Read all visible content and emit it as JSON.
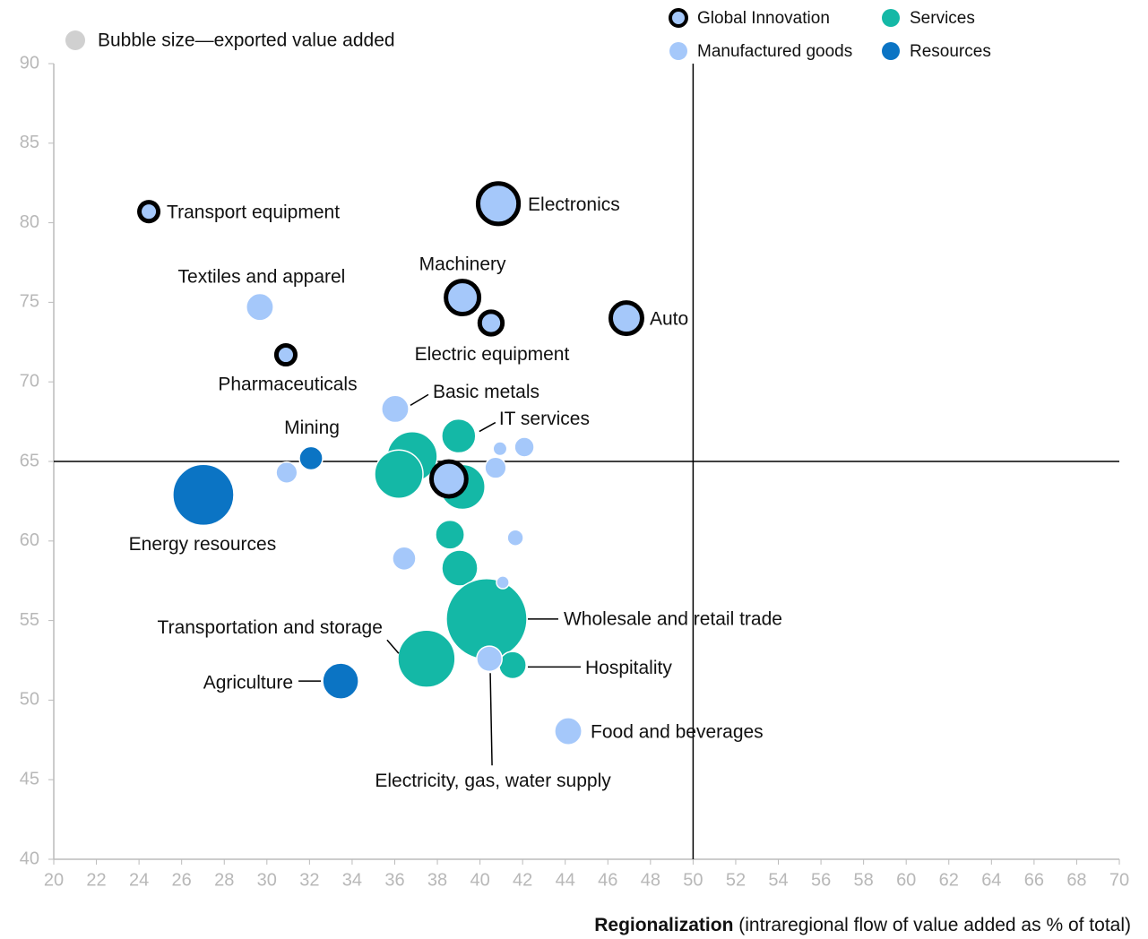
{
  "chart_data": {
    "type": "bubble",
    "size_note": "Bubble size—exported value added",
    "xlabel_bold": "Regionalization",
    "xlabel": " (intraregional flow of value added as % of total)",
    "xlim": [
      20,
      70
    ],
    "ylim": [
      40,
      90
    ],
    "xticks": [
      20,
      22,
      24,
      26,
      28,
      30,
      32,
      34,
      36,
      38,
      40,
      42,
      44,
      46,
      48,
      50,
      52,
      54,
      56,
      58,
      60,
      62,
      64,
      66,
      68,
      70
    ],
    "yticks": [
      40,
      45,
      50,
      55,
      60,
      65,
      70,
      75,
      80,
      85,
      90
    ],
    "reference_lines": {
      "x": 50,
      "y": 65
    },
    "series": [
      {
        "name": "Global Innovation",
        "color": "#a5c8fa",
        "outline": "#000000",
        "x": [
          24.46,
          40.86,
          39.18,
          40.52,
          46.87,
          30.89,
          38.54
        ],
        "y": [
          80.7,
          81.2,
          75.3,
          73.7,
          74.0,
          71.7,
          63.9
        ],
        "sizes": [
          1.7,
          6.3,
          4.4,
          2.3,
          4.0,
          1.7,
          4.8
        ],
        "labels": [
          "Transport equipment",
          "Electronics",
          "Machinery",
          "Electric equipment",
          "Auto",
          "Pharmaceuticals",
          null
        ]
      },
      {
        "name": "Manufactured goods",
        "color": "#a5c8fa",
        "x": [
          29.67,
          36.02,
          40.94,
          42.08,
          40.73,
          30.93,
          41.66,
          36.44,
          41.07,
          40.44,
          44.14
        ],
        "y": [
          74.7,
          68.3,
          65.8,
          65.9,
          64.6,
          64.3,
          60.2,
          58.9,
          57.4,
          52.6,
          48.05
        ],
        "sizes": [
          2.3,
          2.3,
          0.6,
          1.2,
          1.4,
          1.4,
          0.8,
          1.7,
          0.5,
          2.0,
          2.3
        ],
        "labels": [
          "Textiles and apparel",
          "Basic metals",
          null,
          null,
          null,
          null,
          null,
          null,
          null,
          "Electricity, gas, water supply",
          "Food and beverages"
        ]
      },
      {
        "name": "Services",
        "color": "#14b8a6",
        "x": [
          39.0,
          36.82,
          36.19,
          39.18,
          38.59,
          39.05,
          40.31,
          37.49,
          41.53
        ],
        "y": [
          66.6,
          65.3,
          64.2,
          63.4,
          60.4,
          58.3,
          55.1,
          52.6,
          52.2
        ],
        "sizes": [
          3.6,
          7.8,
          7.3,
          6.3,
          2.6,
          4.0,
          20.3,
          10.2,
          2.3
        ],
        "labels": [
          "IT services",
          null,
          null,
          null,
          null,
          null,
          "Wholesale and retail trade",
          "Transportation and storage",
          "Hospitality"
        ]
      },
      {
        "name": "Resources",
        "color": "#0b74c4",
        "x": [
          32.07,
          27.02,
          33.46
        ],
        "y": [
          65.2,
          62.9,
          51.2
        ],
        "sizes": [
          1.7,
          11.6,
          4.0
        ],
        "labels": [
          "Mining",
          "Energy resources",
          "Agriculture"
        ]
      }
    ]
  }
}
